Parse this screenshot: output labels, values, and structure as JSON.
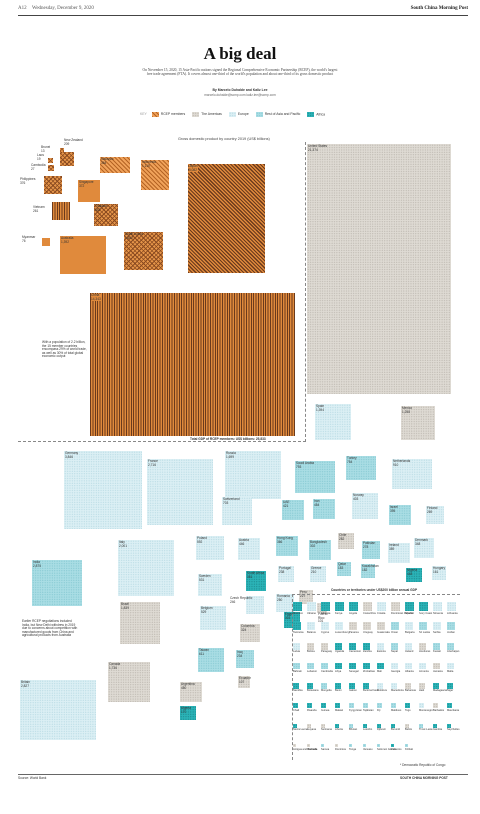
{
  "header": {
    "page": "A12",
    "date": "Wednesday, December 9, 2020",
    "brand": "South China Morning Post"
  },
  "title": "A big deal",
  "intro": "On November 15, 2020, 15 Asia-Pacific nations signed the Regional Comprehensive Economic Partnership (RCEP), the world's largest free trade agreement (FTA). It covers almost one-third of the world's population and about one-third of its gross domestic product",
  "byline": {
    "authors": "By Marcelo Duhalde and Kaliz Lee",
    "emails": "marcelo.duhalde@scmp.com  kaliz.lee@scmp.com"
  },
  "legend": {
    "key": "KEY",
    "items": [
      "RCEP members",
      "The Americas",
      "Europe",
      "Rest of Asia and Pacific",
      "Africa"
    ]
  },
  "chart_title": "Gross domestic product by country 2019 (US$ billions)",
  "rcep_note": "With a population of 2.2 billion, the 15 member countries encompass 29% of world trade, as well as 30% of total global economic output",
  "rcep_total": "Total GDP of RCEP members: US$ billions: 25,833",
  "india_note": "Earlier RCEP negotiations included India, but New Delhi withdrew in 2019 due to concerns about competition with manufactured goods from China and agricultural products from Australia",
  "small_note": "Countries or territories under US$200 billion annual GDP",
  "footnote": "* Democratic Republic of Congo",
  "source": "Source: World Bank",
  "footer_brand": "SOUTH CHINA MORNING POST",
  "colors": {
    "rcep": "#e08a3c",
    "americas": "#dedad3",
    "europe": "#dbeff4",
    "asia": "#a9dde4",
    "africa": "#2bb3b7"
  },
  "rcep": [
    {
      "n": "Brunei",
      "v": "13"
    },
    {
      "n": "Laos",
      "v": "19"
    },
    {
      "n": "Cambodia",
      "v": "27"
    },
    {
      "n": "New Zealand",
      "v": "209"
    },
    {
      "n": "Philippines",
      "v": "376"
    },
    {
      "n": "Vietnam",
      "v": "261"
    },
    {
      "n": "Myanmar",
      "v": "76"
    },
    {
      "n": "Malaysia",
      "v": "364"
    },
    {
      "n": "Singapore",
      "v": "372"
    },
    {
      "n": "Thailand",
      "v": "543"
    },
    {
      "n": "Indonesia",
      "v": "1,119"
    },
    {
      "n": "Australia",
      "v": "1,392"
    },
    {
      "n": "South Korea",
      "v": "1,642"
    },
    {
      "n": "Japan",
      "v": "5,082"
    },
    {
      "n": "China",
      "v": "14,343"
    }
  ],
  "big": [
    {
      "n": "United States",
      "v": "21,374"
    },
    {
      "n": "Spain",
      "v": "1,394"
    },
    {
      "n": "Mexico",
      "v": "1,258"
    },
    {
      "n": "Germany",
      "v": "3,846"
    },
    {
      "n": "France",
      "v": "2,716"
    },
    {
      "n": "Russia",
      "v": "1,699"
    },
    {
      "n": "Saudi Arabia",
      "v": "793"
    },
    {
      "n": "Turkey",
      "v": "754"
    },
    {
      "n": "Netherlands",
      "v": "910"
    },
    {
      "n": "Switzerland",
      "v": "703"
    },
    {
      "n": "Norway",
      "v": "403"
    },
    {
      "n": "Israel",
      "v": "395"
    },
    {
      "n": "Finland",
      "v": "269"
    },
    {
      "n": "Iran",
      "v": "454"
    },
    {
      "n": "UAE",
      "v": "421"
    },
    {
      "n": "Italy",
      "v": "2,001"
    },
    {
      "n": "Poland",
      "v": "592"
    },
    {
      "n": "Austria",
      "v": "446"
    },
    {
      "n": "Hong Kong",
      "v": "366"
    },
    {
      "n": "Bangladesh",
      "v": "302"
    },
    {
      "n": "Chile",
      "v": "282"
    },
    {
      "n": "Pakistan",
      "v": "278"
    },
    {
      "n": "Ireland",
      "v": "389"
    },
    {
      "n": "Denmark",
      "v": "348"
    },
    {
      "n": "Sweden",
      "v": "531"
    },
    {
      "n": "South Africa",
      "v": "351"
    },
    {
      "n": "Portugal",
      "v": "238"
    },
    {
      "n": "Greece",
      "v": "210"
    },
    {
      "n": "Qatar",
      "v": "183"
    },
    {
      "n": "Kazakhstan",
      "v": "182"
    },
    {
      "n": "Nigeria",
      "v": "448"
    },
    {
      "n": "Hungary",
      "v": "161"
    },
    {
      "n": "India",
      "v": "2,875"
    },
    {
      "n": "Brazil",
      "v": "1,839"
    },
    {
      "n": "Belgium",
      "v": "529"
    },
    {
      "n": "Czech Republic",
      "v": "246"
    },
    {
      "n": "Romania",
      "v": "250"
    },
    {
      "n": "Peru",
      "v": "227"
    },
    {
      "n": "Puerto Rico",
      "v": "101"
    },
    {
      "n": "Canada",
      "v": "1,736"
    },
    {
      "n": "Colombia",
      "v": "324"
    },
    {
      "n": "Egypt",
      "v": "303"
    },
    {
      "n": "Taiwan",
      "v": "611"
    },
    {
      "n": "Argentina",
      "v": "450"
    },
    {
      "n": "Iraq",
      "v": "234"
    },
    {
      "n": "Algeria",
      "v": "170"
    },
    {
      "n": "Ecuador",
      "v": "107"
    },
    {
      "n": "Britain",
      "v": "2,827"
    }
  ],
  "small": [
    {
      "n": "Morocco"
    },
    {
      "n": "Ukraine"
    },
    {
      "n": "Ethiopia"
    },
    {
      "n": "Kenya"
    },
    {
      "n": "Angola"
    },
    {
      "n": "Costa Rica"
    },
    {
      "n": "Croatia"
    },
    {
      "n": "Dominican Republic"
    },
    {
      "n": "Ghana"
    },
    {
      "n": "Ivory Coast"
    },
    {
      "n": "Slovenia"
    },
    {
      "n": "Lithuania"
    },
    {
      "n": "Tanzania"
    },
    {
      "n": "Belarus"
    },
    {
      "n": "Cyprus"
    },
    {
      "n": "Luxembourg"
    },
    {
      "n": "Panama"
    },
    {
      "n": "Uruguay"
    },
    {
      "n": "Guatemala"
    },
    {
      "n": "Oman"
    },
    {
      "n": "Bulgaria"
    },
    {
      "n": "Sri Lanka"
    },
    {
      "n": "Serbia"
    },
    {
      "n": "Jordan"
    },
    {
      "n": "Latvia"
    },
    {
      "n": "Bolivia"
    },
    {
      "n": "Paraguay"
    },
    {
      "n": "Uganda"
    },
    {
      "n": "Cameroon"
    },
    {
      "n": "Zambia"
    },
    {
      "n": "Estonia"
    },
    {
      "n": "Nepal"
    },
    {
      "n": "Iceland"
    },
    {
      "n": "Honduras"
    },
    {
      "n": "Kuwait"
    },
    {
      "n": "Azerbaijan"
    },
    {
      "n": "Bahrain"
    },
    {
      "n": "Lebanon"
    },
    {
      "n": "Cambodia"
    },
    {
      "n": "Libya"
    },
    {
      "n": "Senegal"
    },
    {
      "n": "Zimbabwe"
    },
    {
      "n": "Mali"
    },
    {
      "n": "Georgia"
    },
    {
      "n": "Albania"
    },
    {
      "n": "Armenia"
    },
    {
      "n": "Jamaica"
    },
    {
      "n": "Malta"
    },
    {
      "n": "Namibia"
    },
    {
      "n": "Botswana"
    },
    {
      "n": "Mongolia"
    },
    {
      "n": "Benin"
    },
    {
      "n": "Gabon"
    },
    {
      "n": "Burkina Faso"
    },
    {
      "n": "Moldova"
    },
    {
      "n": "Macedonia"
    },
    {
      "n": "Bahamas"
    },
    {
      "n": "Haiti"
    },
    {
      "n": "Madagascar"
    },
    {
      "n": "Niger"
    },
    {
      "n": "Chad"
    },
    {
      "n": "Rwanda"
    },
    {
      "n": "Guinea"
    },
    {
      "n": "Malawi"
    },
    {
      "n": "Kyrgyzstan"
    },
    {
      "n": "Tajikistan"
    },
    {
      "n": "Fiji"
    },
    {
      "n": "Maldives"
    },
    {
      "n": "Togo"
    },
    {
      "n": "Montenegro"
    },
    {
      "n": "Barbados"
    },
    {
      "n": "Mauritania"
    },
    {
      "n": "Sierra Leone"
    },
    {
      "n": "Guyana"
    },
    {
      "n": "Suriname"
    },
    {
      "n": "Liberia"
    },
    {
      "n": "Bhutan"
    },
    {
      "n": "Lesotho"
    },
    {
      "n": "Djibouti"
    },
    {
      "n": "Burundi"
    },
    {
      "n": "Belize"
    },
    {
      "n": "Timor-Leste"
    },
    {
      "n": "Gambia"
    },
    {
      "n": "Seychelles"
    },
    {
      "n": "Antigua and Barbuda"
    },
    {
      "n": "Grenada"
    },
    {
      "n": "Samoa"
    },
    {
      "n": "Dominica"
    },
    {
      "n": "Tonga"
    },
    {
      "n": "Vanuatu"
    },
    {
      "n": "Solomon Islands"
    },
    {
      "n": "Comoros"
    },
    {
      "n": "Kiribati"
    }
  ]
}
